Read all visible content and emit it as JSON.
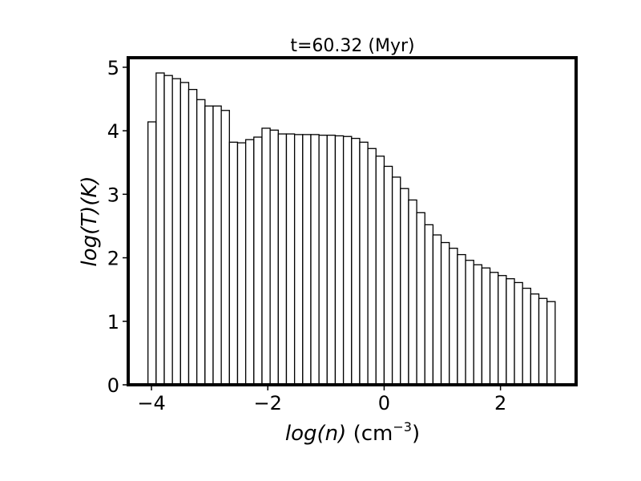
{
  "chart_data": {
    "type": "bar",
    "title": "t=60.32 (Myr)",
    "xlabel": {
      "italic": "log(n)",
      "unit_prefix": " (cm",
      "unit_exp": "−3",
      "unit_suffix": ")"
    },
    "ylabel": "log(T)(K)",
    "xlim": [
      -4.4,
      3.3
    ],
    "ylim": [
      0,
      5.15
    ],
    "xticks": [
      -4,
      -2,
      0,
      2
    ],
    "xtick_labels": [
      "−4",
      "−2",
      "0",
      "2"
    ],
    "yticks": [
      0,
      1,
      2,
      3,
      4,
      5
    ],
    "ytick_labels": [
      "0",
      "1",
      "2",
      "3",
      "4",
      "5"
    ],
    "bin_start": -4.06,
    "bin_width": 0.14,
    "values": [
      4.14,
      4.91,
      4.87,
      4.82,
      4.76,
      4.65,
      4.49,
      4.39,
      4.39,
      4.32,
      3.82,
      3.81,
      3.86,
      3.9,
      4.04,
      4.01,
      3.95,
      3.95,
      3.94,
      3.94,
      3.94,
      3.93,
      3.93,
      3.92,
      3.91,
      3.88,
      3.82,
      3.72,
      3.6,
      3.44,
      3.27,
      3.09,
      2.91,
      2.71,
      2.52,
      2.36,
      2.24,
      2.15,
      2.05,
      1.96,
      1.89,
      1.84,
      1.77,
      1.72,
      1.67,
      1.61,
      1.52,
      1.43,
      1.36,
      1.31
    ],
    "bar_fill": "#ffffff",
    "bar_edge": "#000000",
    "grid": false
  }
}
